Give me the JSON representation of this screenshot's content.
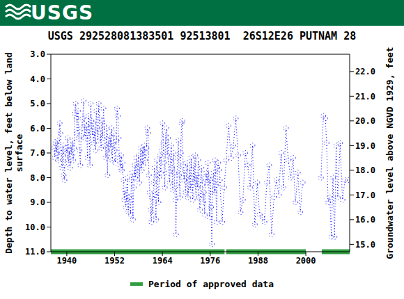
{
  "chart_data": {
    "type": "line",
    "banner": "USGS",
    "title": "USGS 292528081383501 92513801  26S12E26 PUTNAM 28",
    "y_label": "Depth to water level, feet below land surface",
    "y2_label": "Groundwater level above NGVD 1929, feet",
    "legend_label": "Period of approved data",
    "approved_periods": [
      [
        1936,
        1979.6
      ],
      [
        1980,
        2000
      ],
      [
        2004,
        2011
      ]
    ],
    "color": "#0000ff",
    "marker": "circle",
    "line_style": "dotted",
    "xlim": [
      1936,
      2011
    ],
    "xticks": [
      1940,
      1952,
      1964,
      1976,
      1988,
      2000
    ],
    "ylim": [
      11,
      3
    ],
    "yticks": [
      {
        "value": 3,
        "label": "3.0"
      },
      {
        "value": 4,
        "label": "4.0"
      },
      {
        "value": 5,
        "label": "5.0"
      },
      {
        "value": 6,
        "label": "6.0"
      },
      {
        "value": 7,
        "label": "7.0"
      },
      {
        "value": 8,
        "label": "8.0"
      },
      {
        "value": 9,
        "label": "9.0"
      },
      {
        "value": 10,
        "label": "10.0"
      },
      {
        "value": 11,
        "label": "11.0"
      }
    ],
    "y2lim": [
      14.7,
      22.7
    ],
    "y2ticks": [
      {
        "value": 15,
        "label": "15.0"
      },
      {
        "value": 16,
        "label": "16.0"
      },
      {
        "value": 17,
        "label": "17.0"
      },
      {
        "value": 18,
        "label": "18.0"
      },
      {
        "value": 19,
        "label": "19.0"
      },
      {
        "value": 20,
        "label": "20.0"
      },
      {
        "value": 21,
        "label": "21.0"
      },
      {
        "value": 22,
        "label": "22.0"
      }
    ],
    "x": [
      1936.8,
      1937.0,
      1937.2,
      1937.4,
      1937.6,
      1937.8,
      1938.0,
      1938.2,
      1938.4,
      1938.6,
      1938.8,
      1939.0,
      1939.2,
      1939.4,
      1939.6,
      1939.8,
      1940.0,
      1940.2,
      1940.4,
      1940.6,
      1940.8,
      1941.0,
      1941.2,
      1941.4,
      1941.6,
      1941.8,
      1942.0,
      1942.2,
      1942.4,
      1942.6,
      1942.8,
      1943.0,
      1943.2,
      1943.4,
      1943.6,
      1943.8,
      1944.0,
      1944.2,
      1944.4,
      1944.6,
      1944.8,
      1945.0,
      1945.2,
      1945.4,
      1945.6,
      1945.8,
      1946.0,
      1946.2,
      1946.4,
      1946.6,
      1946.8,
      1947.0,
      1947.2,
      1947.4,
      1947.6,
      1947.8,
      1948.0,
      1948.2,
      1948.4,
      1948.6,
      1948.8,
      1949.0,
      1949.2,
      1949.4,
      1949.6,
      1949.8,
      1950.0,
      1950.2,
      1950.4,
      1950.6,
      1950.8,
      1951.0,
      1951.2,
      1951.4,
      1951.6,
      1951.8,
      1952.0,
      1952.2,
      1952.4,
      1952.6,
      1952.8,
      1953.0,
      1953.2,
      1953.4,
      1953.6,
      1953.8,
      1954.0,
      1954.2,
      1954.4,
      1954.6,
      1954.8,
      1955.0,
      1955.2,
      1955.4,
      1955.6,
      1955.8,
      1956.0,
      1956.2,
      1956.4,
      1956.6,
      1956.8,
      1957.0,
      1957.2,
      1957.4,
      1957.6,
      1957.8,
      1958.0,
      1958.2,
      1958.4,
      1958.6,
      1958.8,
      1959.0,
      1959.2,
      1959.4,
      1959.6,
      1959.8,
      1960.0,
      1960.2,
      1960.4,
      1960.6,
      1960.8,
      1961.0,
      1961.2,
      1961.4,
      1961.6,
      1961.8,
      1962.0,
      1962.2,
      1962.4,
      1962.6,
      1962.8,
      1963.0,
      1963.2,
      1963.4,
      1963.6,
      1963.8,
      1964.0,
      1964.2,
      1964.4,
      1964.6,
      1964.8,
      1965.0,
      1965.2,
      1965.4,
      1965.6,
      1965.8,
      1966.0,
      1966.2,
      1966.4,
      1966.6,
      1966.8,
      1967.0,
      1967.2,
      1967.4,
      1967.6,
      1967.8,
      1968.0,
      1968.2,
      1968.4,
      1968.6,
      1968.8,
      1969.0,
      1969.2,
      1969.4,
      1969.6,
      1969.8,
      1970.0,
      1970.2,
      1970.4,
      1970.6,
      1970.8,
      1971.0,
      1971.2,
      1971.4,
      1971.6,
      1971.8,
      1972.0,
      1972.2,
      1972.4,
      1972.6,
      1972.8,
      1973.0,
      1973.2,
      1973.4,
      1973.6,
      1973.8,
      1974.0,
      1974.2,
      1974.4,
      1974.6,
      1974.8,
      1975.0,
      1975.2,
      1975.4,
      1975.6,
      1975.8,
      1976.0,
      1976.2,
      1976.4,
      1976.6,
      1976.8,
      1977.0,
      1977.2,
      1977.4,
      1977.6,
      1977.8,
      1978.0,
      1978.2,
      1978.4,
      1979.0,
      1979.5,
      1980.0,
      1980.6,
      1981.2,
      1981.8,
      1982.4,
      1983.0,
      1983.6,
      1984.2,
      1984.8,
      1985.4,
      1986.0,
      1986.6,
      1987.2,
      1987.8,
      1988.4,
      1989.0,
      1989.6,
      1990.2,
      1990.8,
      1991.4,
      1992.0,
      1992.6,
      1993.2,
      1993.8,
      1994.4,
      1995.0,
      1995.6,
      1996.2,
      1996.8,
      1997.4,
      1998.0,
      1998.6,
      1999.2,
      2002.0,
      2003.8,
      2004.4,
      2004.9,
      2005.2,
      2005.6,
      2006.0,
      2006.4,
      2006.8,
      2007.2,
      2007.6,
      2008.0,
      2008.6,
      2009.2,
      2009.8,
      2010.6
    ],
    "values": [
      6.8,
      7.2,
      6.6,
      7.0,
      6.5,
      7.3,
      6.9,
      5.8,
      6.2,
      7.0,
      7.6,
      6.7,
      7.9,
      8.1,
      7.2,
      6.8,
      7.0,
      6.4,
      7.4,
      6.9,
      7.6,
      6.7,
      7.1,
      6.5,
      7.3,
      6.8,
      5.4,
      5.0,
      5.6,
      6.2,
      5.3,
      6.4,
      6.9,
      7.5,
      6.3,
      6.0,
      5.6,
      4.9,
      5.8,
      6.4,
      5.9,
      6.2,
      7.2,
      5.5,
      6.0,
      7.5,
      5.0,
      5.7,
      6.3,
      5.8,
      6.6,
      6.1,
      6.9,
      5.3,
      6.0,
      6.5,
      5.0,
      5.6,
      6.2,
      6.8,
      5.7,
      6.4,
      5.2,
      5.9,
      6.7,
      7.2,
      6.0,
      7.9,
      6.5,
      7.0,
      6.3,
      6.8,
      6.0,
      7.3,
      6.6,
      6.2,
      6.9,
      7.4,
      6.5,
      5.2,
      5.5,
      6.4,
      7.2,
      7.6,
      7.1,
      7.7,
      7.4,
      8.1,
      8.9,
      8.5,
      9.2,
      8.7,
      8.0,
      9.4,
      8.8,
      9.0,
      9.5,
      8.1,
      7.8,
      9.7,
      8.4,
      7.5,
      8.0,
      7.2,
      7.9,
      7.6,
      7.1,
      8.2,
      7.4,
      6.8,
      7.7,
      6.9,
      7.5,
      6.7,
      7.3,
      7.0,
      6.8,
      6.0,
      6.2,
      7.9,
      8.6,
      9.3,
      9.8,
      8.8,
      9.5,
      8.2,
      7.6,
      8.7,
      9.7,
      7.3,
      7.9,
      9.0,
      8.0,
      7.1,
      7.8,
      6.9,
      5.8,
      6.6,
      7.4,
      8.4,
      6.3,
      6.0,
      7.1,
      6.4,
      7.8,
      8.2,
      7.3,
      6.7,
      7.6,
      8.5,
      7.0,
      7.8,
      8.9,
      10.3,
      8.3,
      7.2,
      6.5,
      7.9,
      8.8,
      7.0,
      5.8,
      5.7,
      7.5,
      8.1,
      7.7,
      8.6,
      8.0,
      7.4,
      8.8,
      8.3,
      7.6,
      8.5,
      7.2,
      8.0,
      8.9,
      7.5,
      8.2,
      7.1,
      8.7,
      7.9,
      8.4,
      7.3,
      8.8,
      9.3,
      8.1,
      7.6,
      8.3,
      9.0,
      8.6,
      9.5,
      8.0,
      7.8,
      8.2,
      7.4,
      8.0,
      9.6,
      8.1,
      9.2,
      10.7,
      8.5,
      7.8,
      8.6,
      7.3,
      8.3,
      9.8,
      7.6,
      7.4,
      7.7,
      8.1,
      9.8,
      8.4,
      7.3,
      5.9,
      7.2,
      6.7,
      5.6,
      7.1,
      9.4,
      8.9,
      7.0,
      7.5,
      8.4,
      6.7,
      9.9,
      8.2,
      9.5,
      9.6,
      9.8,
      8.2,
      7.5,
      10.3,
      8.8,
      8.1,
      8.7,
      7.0,
      8.4,
      6.0,
      7.3,
      8.0,
      7.2,
      9.0,
      7.8,
      9.4,
      8.2,
      null,
      8.0,
      5.5,
      5.6,
      6.6,
      9.0,
      8.8,
      10.4,
      8.0,
      10.4,
      6.7,
      8.8,
      6.6,
      8.9,
      8.1,
      8.1
    ]
  }
}
